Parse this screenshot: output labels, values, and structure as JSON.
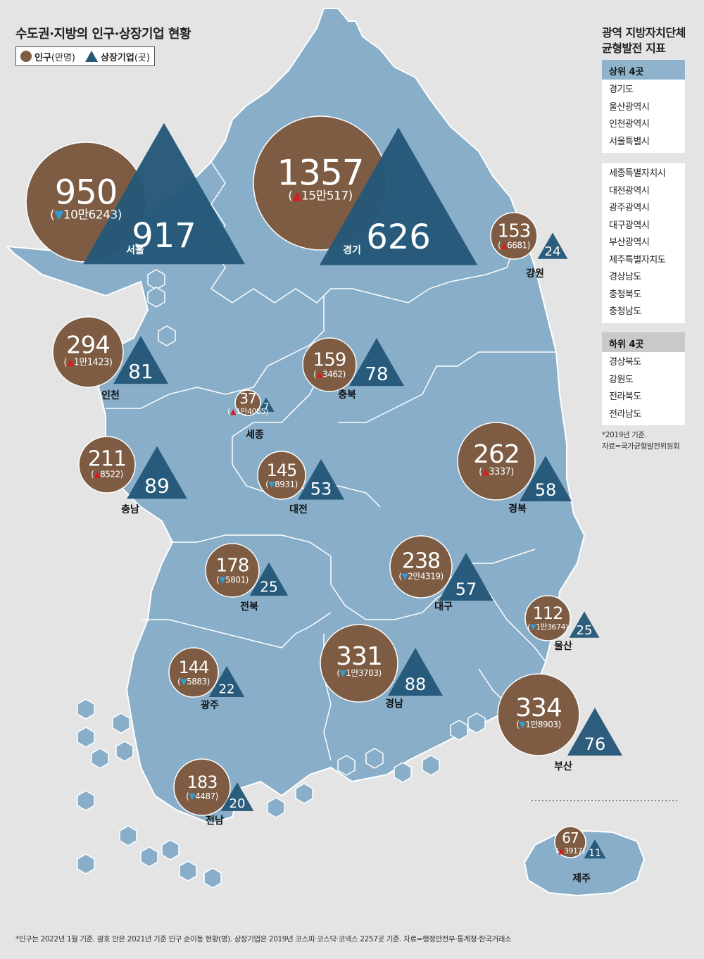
{
  "title": "수도권·지방의 인구·상장기업 현황",
  "legend": {
    "population_label": "인구",
    "population_unit": "(만명)",
    "companies_label": "상장기업",
    "companies_unit": "(곳)"
  },
  "panel": {
    "title_line1": "광역 지방자치단체",
    "title_line2": "균형발전 지표",
    "top_header": "상위 4곳",
    "top": [
      "경기도",
      "울산광역시",
      "인천광역시",
      "서울특별시"
    ],
    "middle": [
      "세종특별자치시",
      "대전광역시",
      "광주광역시",
      "대구광역시",
      "부산광역시",
      "제주특별자치도",
      "경상남도",
      "충청북도",
      "충청남도"
    ],
    "bottom_header": "하위 4곳",
    "bottom": [
      "경상북도",
      "강원도",
      "전라북도",
      "전라남도"
    ],
    "basis_line1": "*2019년 기준.",
    "basis_line2": "자료=국가균형발전위원회"
  },
  "regions": [
    {
      "name": "서울",
      "population": "950",
      "change": "10만6243",
      "direction": "down",
      "companies": "917"
    },
    {
      "name": "경기",
      "population": "1357",
      "change": "15만517",
      "direction": "up",
      "companies": "626"
    },
    {
      "name": "강원",
      "population": "153",
      "change": "6681",
      "direction": "up",
      "companies": "24"
    },
    {
      "name": "인천",
      "population": "294",
      "change": "1만1423",
      "direction": "up",
      "companies": "81"
    },
    {
      "name": "충북",
      "population": "159",
      "change": "3462",
      "direction": "up",
      "companies": "78"
    },
    {
      "name": "세종",
      "population": "37",
      "change": "1만4085",
      "direction": "up",
      "companies": "7"
    },
    {
      "name": "충남",
      "population": "211",
      "change": "8522",
      "direction": "up",
      "companies": "89"
    },
    {
      "name": "대전",
      "population": "145",
      "change": "8931",
      "direction": "down",
      "companies": "53"
    },
    {
      "name": "경북",
      "population": "262",
      "change": "3337",
      "direction": "up",
      "companies": "58"
    },
    {
      "name": "전북",
      "population": "178",
      "change": "5801",
      "direction": "down",
      "companies": "25"
    },
    {
      "name": "대구",
      "population": "238",
      "change": "2만4319",
      "direction": "down",
      "companies": "57"
    },
    {
      "name": "울산",
      "population": "112",
      "change": "1만3674",
      "direction": "down",
      "companies": "25"
    },
    {
      "name": "광주",
      "population": "144",
      "change": "5883",
      "direction": "down",
      "companies": "22"
    },
    {
      "name": "경남",
      "population": "331",
      "change": "1만3703",
      "direction": "down",
      "companies": "88"
    },
    {
      "name": "부산",
      "population": "334",
      "change": "1만8903",
      "direction": "down",
      "companies": "76"
    },
    {
      "name": "전남",
      "population": "183",
      "change": "4487",
      "direction": "down",
      "companies": "20"
    },
    {
      "name": "제주",
      "population": "67",
      "change": "3917",
      "direction": "up",
      "companies": "11"
    }
  ],
  "colors": {
    "population": "#7d5c43",
    "companies": "#255878",
    "land": "#88aec9",
    "up": "#d62020",
    "down": "#2e9fd8"
  },
  "footnote": "*인구는 2022년 1월 기준. 괄호 안은 2021년 기준 인구 순이동 현황(명). 상장기업은 2019년 코스피·코스닥·코넥스 2257곳 기준. 자료=행정안전부·통계청·한국거래소"
}
